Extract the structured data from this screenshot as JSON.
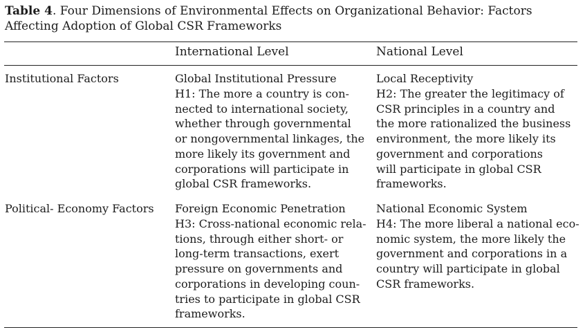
{
  "table": {
    "caption_number": "Table 4",
    "caption_text": ". Four Dimensions of Environmental Effects on Organizational Behavior: Factors Affecting Adoption of Global CSR Frameworks",
    "columns": [
      "International Level",
      "National Level"
    ],
    "rows": [
      {
        "label": "Institutional Factors",
        "cells": [
          {
            "title": "Global Institutional Pressure",
            "lines": [
              "H1: The more a country is con-",
              "nected to international society,",
              "whether through governmental",
              "or nongovernmental linkages, the",
              "more likely its government and",
              "corporations will participate in",
              "global CSR frameworks."
            ]
          },
          {
            "title": "Local Receptivity",
            "lines": [
              "H2: The greater the legitimacy of",
              "CSR principles in a country and",
              "the more rationalized the business",
              "environment, the more likely its",
              "government and corporations",
              "will participate in global CSR",
              "frameworks."
            ]
          }
        ]
      },
      {
        "label": "Political- Economy Factors",
        "cells": [
          {
            "title": "Foreign Economic Penetration",
            "lines": [
              "H3: Cross-national economic rela-",
              "tions, through either short- or",
              "long-term transactions, exert",
              "pressure on governments and",
              "corporations in developing coun-",
              "tries to participate in global CSR",
              "frameworks."
            ]
          },
          {
            "title": "National Economic System",
            "lines": [
              "H4: The more liberal a national eco-",
              "nomic system, the more likely the",
              "government and corporations in a",
              "country will participate in global",
              "CSR frameworks."
            ]
          }
        ]
      }
    ]
  }
}
